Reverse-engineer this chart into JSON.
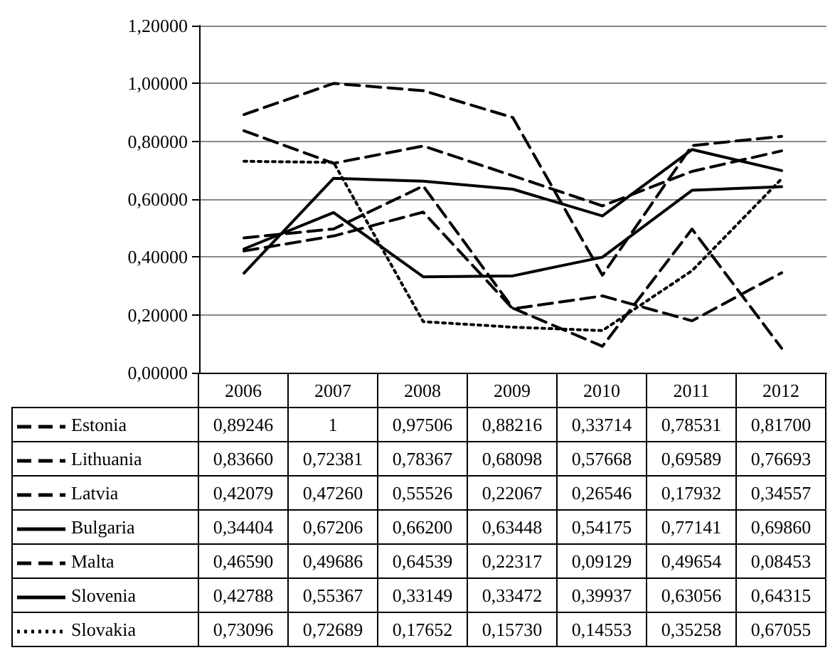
{
  "chart_data": {
    "type": "line",
    "categories": [
      "2006",
      "2007",
      "2008",
      "2009",
      "2010",
      "2011",
      "2012"
    ],
    "ylim": [
      0,
      1.2
    ],
    "yticks": [
      {
        "value": 0,
        "label": "0,00000"
      },
      {
        "value": 0.2,
        "label": "0,20000"
      },
      {
        "value": 0.4,
        "label": "0,40000"
      },
      {
        "value": 0.6,
        "label": "0,60000"
      },
      {
        "value": 0.8,
        "label": "0,80000"
      },
      {
        "value": 1,
        "label": "1,00000"
      },
      {
        "value": 1.2,
        "label": "1,20000"
      }
    ],
    "grid": "y",
    "marker": "none",
    "legend": "bottom",
    "series": [
      {
        "name": "Estonia",
        "color": "#000000",
        "line_style": "dashed",
        "values": [
          0.89246,
          1,
          0.97506,
          0.88216,
          0.33714,
          0.78531,
          0.817
        ],
        "value_labels": [
          "0,89246",
          "1",
          "0,97506",
          "0,88216",
          "0,33714",
          "0,78531",
          "0,81700"
        ]
      },
      {
        "name": "Lithuania",
        "color": "#000000",
        "line_style": "dashed",
        "values": [
          0.8366,
          0.72381,
          0.78367,
          0.68098,
          0.57668,
          0.69589,
          0.76693
        ],
        "value_labels": [
          "0,83660",
          "0,72381",
          "0,78367",
          "0,68098",
          "0,57668",
          "0,69589",
          "0,76693"
        ]
      },
      {
        "name": "Latvia",
        "color": "#000000",
        "line_style": "dashed",
        "values": [
          0.42079,
          0.4726,
          0.55526,
          0.22067,
          0.26546,
          0.17932,
          0.34557
        ],
        "value_labels": [
          "0,42079",
          "0,47260",
          "0,55526",
          "0,22067",
          "0,26546",
          "0,17932",
          "0,34557"
        ]
      },
      {
        "name": "Bulgaria",
        "color": "#000000",
        "line_style": "solid",
        "values": [
          0.34404,
          0.67206,
          0.662,
          0.63448,
          0.54175,
          0.77141,
          0.6986
        ],
        "value_labels": [
          "0,34404",
          "0,67206",
          "0,66200",
          "0,63448",
          "0,54175",
          "0,77141",
          "0,69860"
        ]
      },
      {
        "name": "Malta",
        "color": "#000000",
        "line_style": "dashed",
        "values": [
          0.4659,
          0.49686,
          0.64539,
          0.22317,
          0.09129,
          0.49654,
          0.08453
        ],
        "value_labels": [
          "0,46590",
          "0,49686",
          "0,64539",
          "0,22317",
          "0,09129",
          "0,49654",
          "0,08453"
        ]
      },
      {
        "name": "Slovenia",
        "color": "#000000",
        "line_style": "solid",
        "values": [
          0.42788,
          0.55367,
          0.33149,
          0.33472,
          0.39937,
          0.63056,
          0.64315
        ],
        "value_labels": [
          "0,42788",
          "0,55367",
          "0,33149",
          "0,33472",
          "0,39937",
          "0,63056",
          "0,64315"
        ]
      },
      {
        "name": "Slovakia",
        "color": "#000000",
        "line_style": "dotted",
        "values": [
          0.73096,
          0.72689,
          0.17652,
          0.1573,
          0.14553,
          0.35258,
          0.67055
        ],
        "value_labels": [
          "0,73096",
          "0,72689",
          "0,17652",
          "0,15730",
          "0,14553",
          "0,35258",
          "0,67055"
        ]
      }
    ]
  }
}
